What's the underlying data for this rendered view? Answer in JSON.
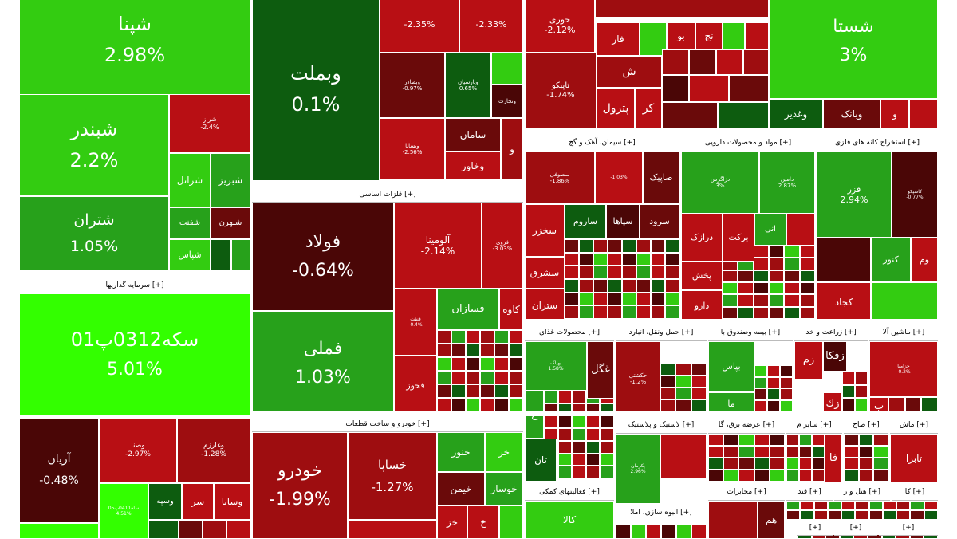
{
  "colors": {
    "bright_green": "#33ff00",
    "green": "#33cc11",
    "mid_green": "#27a11b",
    "dark_green": "#0d5c0f",
    "mid_red": "#b80f14",
    "red": "#9e0d10",
    "dark_red": "#6a0a0a",
    "darkest_red": "#4a0606"
  },
  "sectors": [
    {
      "label": "سرمایه گذاریها [+]"
    },
    {
      "label": "فلزات اساسی [+]"
    },
    {
      "label": "خودرو و ساخت قطعات [+]"
    },
    {
      "label": "سیمان، آهک و گچ [+]"
    },
    {
      "label": "مواد و محصولات دارویی [+]"
    },
    {
      "label": "استخراج کانه های فلزی [+]"
    },
    {
      "label": "محصولات غذای [+]"
    },
    {
      "label": "حمل ونقل، انبارد [+]"
    },
    {
      "label": "بیمه وصندوق با [+]"
    },
    {
      "label": "زراعت و خد [+]"
    },
    {
      "label": "ماشین آلا [+]"
    },
    {
      "label": "لاستیک و پلاستیک [+]"
    },
    {
      "label": "عرضه برق، گا [+]"
    },
    {
      "label": "سایر م [+]"
    },
    {
      "label": "صاح [+]"
    },
    {
      "label": "ماش [+]"
    },
    {
      "label": "فعالیتهای کمکی [+]"
    },
    {
      "label": "مخابرات [+]"
    },
    {
      "label": "انبوه سازی، املا [+]"
    },
    {
      "label": "قند [+]"
    },
    {
      "label": "هتل و ر [+]"
    },
    {
      "label": "کا [+]"
    },
    {
      "label": "[+]"
    },
    {
      "label": "[+]"
    },
    {
      "label": "[+]"
    }
  ],
  "tiles": [
    {
      "sym": "شپنا",
      "pct": "2.98%",
      "c": "green"
    },
    {
      "sym": "شبندر",
      "pct": "2.2%",
      "c": "green"
    },
    {
      "sym": "شتران",
      "pct": "1.05%",
      "c": "mid_green"
    },
    {
      "sym": "شراز",
      "pct": "-2.4%",
      "c": "mid_red"
    },
    {
      "sym": "شرانل",
      "pct": "",
      "c": "green"
    },
    {
      "sym": "شبریز",
      "pct": "",
      "c": "mid_green"
    },
    {
      "sym": "شفنت",
      "pct": "",
      "c": "mid_green"
    },
    {
      "sym": "شبهرن",
      "pct": "",
      "c": "dark_red"
    },
    {
      "sym": "شپاس",
      "pct": "",
      "c": "green"
    },
    {
      "sym": "",
      "pct": "",
      "c": "dark_green"
    },
    {
      "sym": "",
      "pct": "",
      "c": "mid_green"
    },
    {
      "sym": "وبملت",
      "pct": "0.1%",
      "c": "dark_green"
    },
    {
      "sym": "",
      "pct": "-2.35%",
      "c": "mid_red"
    },
    {
      "sym": "",
      "pct": "-2.33%",
      "c": "mid_red"
    },
    {
      "sym": "وبصادر",
      "pct": "-0.97%",
      "c": "dark_red"
    },
    {
      "sym": "وپارسیان",
      "pct": "0.65%",
      "c": "dark_green"
    },
    {
      "sym": "",
      "pct": "",
      "c": "green"
    },
    {
      "sym": "وتجارت",
      "pct": "",
      "c": "darkest_red"
    },
    {
      "sym": "وبساپا",
      "pct": "-2.56%",
      "c": "mid_red"
    },
    {
      "sym": "سامان",
      "pct": "",
      "c": "dark_red"
    },
    {
      "sym": "وخاور",
      "pct": "",
      "c": "mid_red"
    },
    {
      "sym": "و",
      "pct": "",
      "c": "red"
    },
    {
      "sym": "خوری",
      "pct": "-2.12%",
      "c": "mid_red"
    },
    {
      "sym": "",
      "pct": "",
      "c": "red"
    },
    {
      "sym": "تاپیکو",
      "pct": "-1.74%",
      "c": "red"
    },
    {
      "sym": "پترول",
      "pct": "",
      "c": "mid_red"
    },
    {
      "sym": "فار",
      "pct": "",
      "c": "mid_red"
    },
    {
      "sym": "",
      "pct": "",
      "c": "green"
    },
    {
      "sym": "ش",
      "pct": "",
      "c": "red"
    },
    {
      "sym": "کر",
      "pct": "",
      "c": "mid_red"
    },
    {
      "sym": "بو",
      "pct": "",
      "c": "mid_red"
    },
    {
      "sym": "نج",
      "pct": "",
      "c": "mid_red"
    },
    {
      "sym": "",
      "pct": "",
      "c": "green"
    },
    {
      "sym": "",
      "pct": "",
      "c": "mid_red"
    },
    {
      "sym": "",
      "pct": "",
      "c": "red"
    },
    {
      "sym": "",
      "pct": "",
      "c": "dark_red"
    },
    {
      "sym": "",
      "pct": "",
      "c": "mid_red"
    },
    {
      "sym": "",
      "pct": "",
      "c": "red"
    },
    {
      "sym": "",
      "pct": "",
      "c": "darkest_red"
    },
    {
      "sym": "",
      "pct": "",
      "c": "mid_red"
    },
    {
      "sym": "",
      "pct": "",
      "c": "dark_red"
    },
    {
      "sym": "شستا",
      "pct": "3%",
      "c": "green"
    },
    {
      "sym": "وغدیر",
      "pct": "",
      "c": "dark_green"
    },
    {
      "sym": "وبانک",
      "pct": "",
      "c": "dark_red"
    },
    {
      "sym": "و",
      "pct": "",
      "c": "mid_red"
    },
    {
      "sym": "",
      "pct": "",
      "c": "mid_red"
    },
    {
      "sym": "",
      "pct": "",
      "c": "dark_red"
    },
    {
      "sym": "",
      "pct": "",
      "c": "dark_green"
    },
    {
      "sym": "سکه0312پ01",
      "pct": "5.01%",
      "c": "bright_green"
    },
    {
      "sym": "آریان",
      "pct": "-0.48%",
      "c": "darkest_red"
    },
    {
      "sym": "وصنا",
      "pct": "-2.97%",
      "c": "mid_red"
    },
    {
      "sym": "وغارزم",
      "pct": "-1.28%",
      "c": "red"
    },
    {
      "sym": "",
      "pct": "",
      "c": "bright_green"
    },
    {
      "sym": "وسپه",
      "pct": "",
      "c": "dark_green"
    },
    {
      "sym": "سر",
      "pct": "",
      "c": "mid_red"
    },
    {
      "sym": "وسایا",
      "pct": "",
      "c": "mid_red"
    },
    {
      "sym": "ساه0411پ05",
      "pct": "4.51%",
      "c": "bright_green"
    },
    {
      "sym": "",
      "pct": "",
      "c": "dark_green"
    },
    {
      "sym": "",
      "pct": "",
      "c": "dark_red"
    },
    {
      "sym": "",
      "pct": "",
      "c": "red"
    },
    {
      "sym": "",
      "pct": "",
      "c": "mid_red"
    },
    {
      "sym": "",
      "pct": "",
      "c": "bright_green"
    },
    {
      "sym": "فولاد",
      "pct": "-0.64%",
      "c": "darkest_red"
    },
    {
      "sym": "آلومینا",
      "pct": "-2.14%",
      "c": "mid_red"
    },
    {
      "sym": "فروی",
      "pct": "-3.03%",
      "c": "mid_red"
    },
    {
      "sym": "فملی",
      "pct": "1.03%",
      "c": "mid_green"
    },
    {
      "sym": "فنفت",
      "pct": "-0.4%",
      "c": "mid_red"
    },
    {
      "sym": "فخوز",
      "pct": "",
      "c": "mid_red"
    },
    {
      "sym": "فسازان",
      "pct": "",
      "c": "mid_green"
    },
    {
      "sym": "کاوه",
      "pct": "",
      "c": "mid_red"
    },
    {
      "sym": "خودرو",
      "pct": "-1.99%",
      "c": "red"
    },
    {
      "sym": "خساپا",
      "pct": "-1.27%",
      "c": "red"
    },
    {
      "sym": "",
      "pct": "",
      "c": "mid_red"
    },
    {
      "sym": "خنور",
      "pct": "",
      "c": "mid_green"
    },
    {
      "sym": "خر",
      "pct": "",
      "c": "green"
    },
    {
      "sym": "خیمن",
      "pct": "",
      "c": "dark_red"
    },
    {
      "sym": "خوساز",
      "pct": "",
      "c": "mid_green"
    },
    {
      "sym": "خز",
      "pct": "",
      "c": "mid_red"
    },
    {
      "sym": "خ",
      "pct": "",
      "c": "mid_red"
    },
    {
      "sym": "",
      "pct": "",
      "c": "green"
    },
    {
      "sym": "سصوفی",
      "pct": "-1.86%",
      "c": "red"
    },
    {
      "sym": "",
      "pct": "-1.03%",
      "c": "mid_red"
    },
    {
      "sym": "صاپیک",
      "pct": "",
      "c": "dark_red"
    },
    {
      "sym": "سخزر",
      "pct": "",
      "c": "mid_red"
    },
    {
      "sym": "ساروم",
      "pct": "",
      "c": "dark_green"
    },
    {
      "sym": "سپاها",
      "pct": "",
      "c": "darkest_red"
    },
    {
      "sym": "سرود",
      "pct": "",
      "c": "dark_red"
    },
    {
      "sym": "سشرق",
      "pct": "",
      "c": "mid_red"
    },
    {
      "sym": "ستران",
      "pct": "",
      "c": "mid_red"
    },
    {
      "sym": "دزاگرس",
      "pct": "3%",
      "c": "mid_green"
    },
    {
      "sym": "دامین",
      "pct": "2.87%",
      "c": "mid_green"
    },
    {
      "sym": "درازک",
      "pct": "",
      "c": "mid_red"
    },
    {
      "sym": "برکت",
      "pct": "",
      "c": "mid_red"
    },
    {
      "sym": "انی",
      "pct": "",
      "c": "mid_green"
    },
    {
      "sym": "",
      "pct": "",
      "c": "mid_red"
    },
    {
      "sym": "پخش",
      "pct": "",
      "c": "mid_red"
    },
    {
      "sym": "دارو",
      "pct": "",
      "c": "mid_red"
    },
    {
      "sym": "فزر",
      "pct": "2.94%",
      "c": "mid_green"
    },
    {
      "sym": "کاسپکو",
      "pct": "-0.77%",
      "c": "darkest_red"
    },
    {
      "sym": "",
      "pct": "",
      "c": "darkest_red"
    },
    {
      "sym": "کنور",
      "pct": "",
      "c": "mid_green"
    },
    {
      "sym": "وم",
      "pct": "",
      "c": "mid_red"
    },
    {
      "sym": "کجاد",
      "pct": "",
      "c": "mid_red"
    },
    {
      "sym": "",
      "pct": "",
      "c": "green"
    },
    {
      "sym": "بهپاک",
      "pct": "1.58%",
      "c": "mid_green"
    },
    {
      "sym": "غگل",
      "pct": "",
      "c": "dark_red"
    },
    {
      "sym": "غ",
      "pct": "",
      "c": "mid_green"
    },
    {
      "sym": "تان",
      "pct": "",
      "c": "dark_green"
    },
    {
      "sym": "حکشتی",
      "pct": "-1.2%",
      "c": "red"
    },
    {
      "sym": "بپاس",
      "pct": "",
      "c": "mid_green"
    },
    {
      "sym": "ما",
      "pct": "",
      "c": "mid_green"
    },
    {
      "sym": "زم",
      "pct": "",
      "c": "mid_red"
    },
    {
      "sym": "زفکا",
      "pct": "",
      "c": "darkest_red"
    },
    {
      "sym": "زك",
      "pct": "",
      "c": "mid_red"
    },
    {
      "sym": "خزامیا",
      "pct": "-0.2%",
      "c": "mid_red"
    },
    {
      "sym": "ب",
      "pct": "",
      "c": "mid_red"
    },
    {
      "sym": "پکرمان",
      "pct": "2.96%",
      "c": "mid_green"
    },
    {
      "sym": "",
      "pct": "",
      "c": "mid_red"
    },
    {
      "sym": "فا",
      "pct": "",
      "c": "mid_red"
    },
    {
      "sym": "تابرا",
      "pct": "",
      "c": "mid_red"
    },
    {
      "sym": "کالا",
      "pct": "",
      "c": "green"
    },
    {
      "sym": "هم",
      "pct": "",
      "c": "dark_red"
    },
    {
      "sym": "",
      "pct": "",
      "c": "red"
    }
  ]
}
